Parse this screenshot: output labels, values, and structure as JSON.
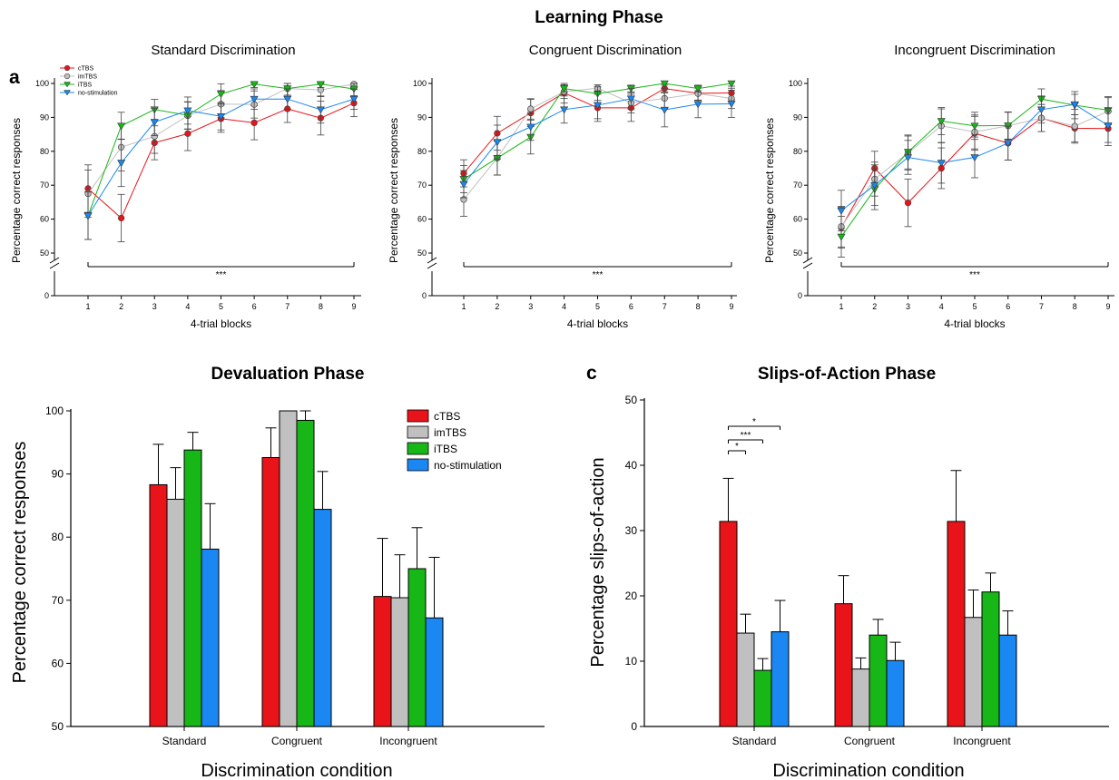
{
  "colors": {
    "cTBS": "#e8141a",
    "imTBS": "#c0c0c0",
    "iTBS": "#16b716",
    "no-stimulation": "#1a87f2"
  },
  "learning": {
    "title": "Learning Phase",
    "panel_letter": "a",
    "panels": [
      {
        "title": "Standard Discrimination",
        "sig": "***"
      },
      {
        "title": "Congruent Discrimination",
        "sig": "***"
      },
      {
        "title": "Incongruent Discrimination",
        "sig": "***"
      }
    ],
    "ylabel": "Percentage correct responses",
    "xlabel": "4-trial blocks"
  },
  "devaluation": {
    "title": "Devaluation Phase",
    "ylabel": "Percentage correct responses",
    "xlabel": "Discrimination condition"
  },
  "slips": {
    "title": "Slips-of-Action Phase",
    "panel_letter": "c",
    "ylabel": "Percentage slips-of-action",
    "xlabel": "Discrimination condition"
  },
  "chart_data": [
    {
      "type": "line",
      "title": "Standard Discrimination",
      "xlabel": "4-trial blocks",
      "ylabel": "Percentage correct responses",
      "x": [
        1,
        2,
        3,
        4,
        5,
        6,
        7,
        8,
        9
      ],
      "ylim": [
        0,
        100
      ],
      "yticks": [
        0,
        50,
        60,
        70,
        80,
        90,
        100
      ],
      "axis_break": true,
      "legend": "top-left",
      "series": [
        {
          "name": "cTBS",
          "marker": "circle",
          "values": [
            69,
            60.3,
            82.5,
            85.2,
            89.6,
            88.4,
            92.5,
            89.8,
            94.2
          ],
          "errors": [
            7,
            7,
            5,
            5,
            4,
            5,
            4,
            5,
            4
          ]
        },
        {
          "name": "imTBS",
          "marker": "circle",
          "values": [
            67.5,
            81.2,
            84.4,
            90.5,
            93.9,
            93.8,
            98.5,
            98.1,
            99.8
          ],
          "errors": [
            7,
            7,
            5,
            4,
            4,
            4,
            2,
            2,
            1
          ]
        },
        {
          "name": "iTBS",
          "marker": "triangle-down",
          "values": [
            61,
            87.5,
            92.3,
            90.6,
            96.9,
            99.8,
            98.5,
            99.8,
            98.4
          ],
          "errors": [
            7,
            4,
            3,
            4,
            3,
            1,
            2,
            1,
            2
          ]
        },
        {
          "name": "no-stimulation",
          "marker": "triangle-down",
          "values": [
            61,
            76.6,
            88.6,
            92,
            90.3,
            95.4,
            95.4,
            92.3,
            95.4
          ],
          "errors": [
            7,
            7,
            4,
            4,
            4,
            3,
            3,
            4,
            3
          ]
        }
      ],
      "significance": "***"
    },
    {
      "type": "line",
      "title": "Congruent Discrimination",
      "xlabel": "4-trial blocks",
      "ylabel": "Percentage correct responses",
      "x": [
        1,
        2,
        3,
        4,
        5,
        6,
        7,
        8,
        9
      ],
      "ylim": [
        0,
        100
      ],
      "yticks": [
        0,
        50,
        60,
        70,
        80,
        90,
        100
      ],
      "axis_break": true,
      "series": [
        {
          "name": "cTBS",
          "marker": "circle",
          "values": [
            73.5,
            85.3,
            91.3,
            97.2,
            92.8,
            92.8,
            98.5,
            97.1,
            97.2
          ],
          "errors": [
            4,
            5,
            4,
            3,
            4,
            4,
            1,
            2,
            2
          ]
        },
        {
          "name": "imTBS",
          "marker": "circle",
          "values": [
            65.8,
            78,
            92.5,
            97.6,
            98.6,
            94.3,
            95.6,
            97,
            95.6
          ],
          "errors": [
            5,
            5,
            3,
            2,
            1,
            3,
            3,
            2,
            3
          ]
        },
        {
          "name": "iTBS",
          "marker": "triangle-down",
          "values": [
            71.8,
            78,
            84.2,
            98.5,
            97,
            98.5,
            100,
            98.5,
            100
          ],
          "errors": [
            4,
            5,
            5,
            1,
            2,
            1,
            0,
            1,
            0
          ]
        },
        {
          "name": "no-stimulation",
          "marker": "triangle-down",
          "values": [
            70.3,
            82.7,
            87.2,
            92.3,
            93.6,
            95.5,
            92.2,
            93.9,
            94
          ],
          "errors": [
            4,
            5,
            4,
            4,
            4,
            3,
            5,
            4,
            4
          ]
        }
      ],
      "significance": "***"
    },
    {
      "type": "line",
      "title": "Incongruent Discrimination",
      "xlabel": "4-trial blocks",
      "ylabel": "Percentage correct responses",
      "x": [
        1,
        2,
        3,
        4,
        5,
        6,
        7,
        8,
        9
      ],
      "ylim": [
        0,
        100
      ],
      "yticks": [
        0,
        50,
        60,
        70,
        80,
        90,
        100
      ],
      "axis_break": true,
      "series": [
        {
          "name": "cTBS",
          "marker": "circle",
          "values": [
            57.5,
            75,
            64.8,
            75,
            85.3,
            82.4,
            89.8,
            86.8,
            86.7
          ],
          "errors": [
            6,
            5,
            7,
            6,
            5,
            5,
            4,
            4,
            5
          ]
        },
        {
          "name": "imTBS",
          "marker": "circle",
          "values": [
            57.8,
            71.8,
            79.5,
            87.5,
            85.7,
            87.5,
            89.8,
            87.4,
            91.8
          ],
          "errors": [
            6,
            5,
            5,
            5,
            5,
            4,
            4,
            5,
            4
          ]
        },
        {
          "name": "iTBS",
          "marker": "triangle-down",
          "values": [
            54.8,
            68.8,
            79.8,
            88.9,
            87.5,
            87.6,
            95.4,
            93.6,
            92.1
          ],
          "errors": [
            6,
            6,
            5,
            4,
            4,
            4,
            3,
            4,
            4
          ]
        },
        {
          "name": "no-stimulation",
          "marker": "triangle-down",
          "values": [
            62.5,
            70,
            78.2,
            76.6,
            78.2,
            82.4,
            92.3,
            93.8,
            87.6
          ],
          "errors": [
            6,
            6,
            5,
            6,
            6,
            5,
            4,
            3,
            5
          ]
        }
      ],
      "significance": "***"
    },
    {
      "type": "bar",
      "title": "Devaluation Phase",
      "xlabel": "Discrimination condition",
      "ylabel": "Percentage correct responses",
      "categories": [
        "Standard",
        "Congruent",
        "Incongruent"
      ],
      "ylim": [
        50,
        100
      ],
      "yticks": [
        50,
        60,
        70,
        80,
        90,
        100
      ],
      "legend": "top-right",
      "series": [
        {
          "name": "cTBS",
          "values": [
            88.3,
            92.6,
            70.6
          ],
          "errors": [
            6.4,
            4.7,
            9.2
          ]
        },
        {
          "name": "imTBS",
          "values": [
            86,
            100,
            70.4
          ],
          "errors": [
            5,
            0,
            6.8
          ]
        },
        {
          "name": "iTBS",
          "values": [
            93.8,
            98.5,
            75
          ],
          "errors": [
            2.8,
            1.5,
            6.5
          ]
        },
        {
          "name": "no-stimulation",
          "values": [
            78.1,
            84.4,
            67.2
          ],
          "errors": [
            7.2,
            6,
            9.6
          ]
        }
      ]
    },
    {
      "type": "bar",
      "title": "Slips-of-Action Phase",
      "xlabel": "Discrimination condition",
      "ylabel": "Percentage slips-of-action",
      "categories": [
        "Standard",
        "Congruent",
        "Incongruent"
      ],
      "ylim": [
        0,
        50
      ],
      "yticks": [
        0,
        10,
        20,
        30,
        40,
        50
      ],
      "series": [
        {
          "name": "cTBS",
          "values": [
            31.4,
            18.8,
            31.4
          ],
          "errors": [
            6.6,
            4.3,
            7.8
          ]
        },
        {
          "name": "imTBS",
          "values": [
            14.3,
            8.8,
            16.7
          ],
          "errors": [
            2.9,
            1.7,
            4.2
          ]
        },
        {
          "name": "iTBS",
          "values": [
            8.6,
            14,
            20.6
          ],
          "errors": [
            1.8,
            2.4,
            2.9
          ]
        },
        {
          "name": "no-stimulation",
          "values": [
            14.5,
            10.1,
            14
          ],
          "errors": [
            4.8,
            2.8,
            3.7
          ]
        }
      ],
      "significance": [
        {
          "from": "cTBS",
          "to": "imTBS",
          "label": "*"
        },
        {
          "from": "cTBS",
          "to": "iTBS",
          "label": "***"
        },
        {
          "from": "cTBS",
          "to": "no-stimulation",
          "label": "*"
        }
      ]
    }
  ]
}
